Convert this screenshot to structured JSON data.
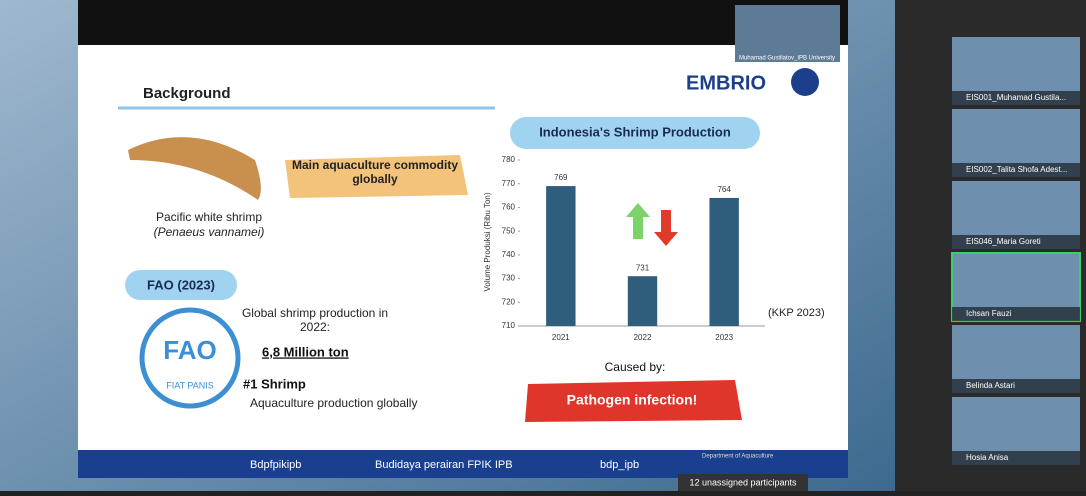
{
  "slide": {
    "heading": "Background",
    "logo": "EMBRIO",
    "shrimp_caption": "Pacific white shrimp",
    "shrimp_latin": "(Penaeus vannamei)",
    "commodity": "Main aquaculture commodity globally",
    "fao_badge": "FAO (2023)",
    "fao_logo": "FAO",
    "fao_motto": "FIAT PANIS",
    "fao_text": "Global shrimp production in 2022:",
    "fao_amount": "6,8 Million ton",
    "fao_rank": "#1 Shrimp",
    "fao_rank_note": "Aquaculture production globally",
    "source": "(KKP 2023)",
    "caused_by": "Caused by:",
    "cause": "Pathogen infection!",
    "footer": [
      "Bdpfpikipb",
      "Budidaya perairan FPIK IPB",
      "bdp_ipb"
    ],
    "footer_dept": "Department of Aquaculture"
  },
  "chart_data": {
    "type": "bar",
    "title": "Indonesia's Shrimp Production",
    "y_label": "Volume Produksi (Ribu Ton)",
    "categories": [
      "2021",
      "2022",
      "2023"
    ],
    "values": [
      769,
      731,
      764
    ],
    "color": "#2f5d7c",
    "ylim": [
      710,
      780
    ],
    "yticks": [
      710,
      720,
      730,
      740,
      750,
      760,
      770,
      780
    ]
  },
  "meeting": {
    "speaker": "Muhamad Gustilatov_IPB University",
    "participants": [
      "EIS001_Muhamad Gustila...",
      "EIS002_Talita Shofa Adest...",
      "EIS046_Maria Goreti",
      "Ichsan Fauzi",
      "Belinda Astari",
      "Hosia Anisa"
    ],
    "unassigned": "12 unassigned participants"
  }
}
